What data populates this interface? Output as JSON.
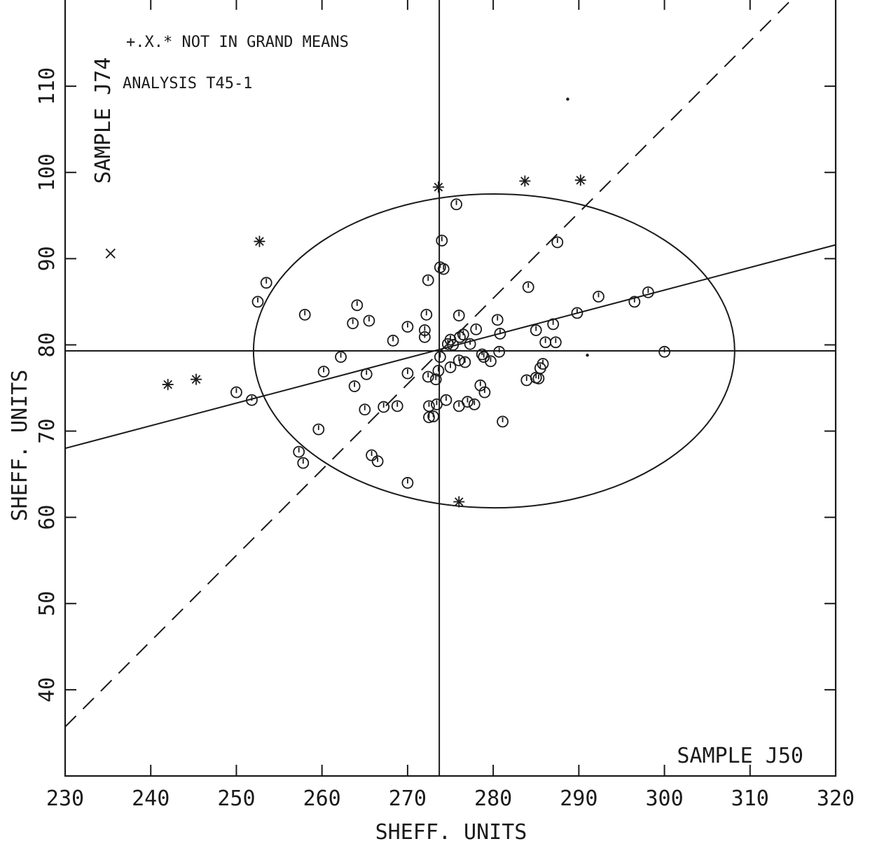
{
  "chart_data": {
    "type": "scatter",
    "xlabel": "SHEFF. UNITS",
    "ylabel": "SHEFF. UNITS",
    "xlim": [
      230,
      320
    ],
    "ylim": [
      30,
      120
    ],
    "x_ticks": [
      230,
      240,
      250,
      260,
      270,
      280,
      290,
      300,
      310,
      320
    ],
    "y_ticks": [
      40,
      50,
      60,
      70,
      80,
      90,
      100,
      110
    ],
    "grid": false,
    "annotations": {
      "legend_note": "+.X.* NOT IN GRAND MEANS",
      "analysis": "ANALYSIS  T45-1",
      "y_sample": "SAMPLE J74",
      "x_sample": "SAMPLE J50"
    },
    "reference_lines": {
      "mean_x": 273.7,
      "mean_y": 79.3
    },
    "regression_line": {
      "points": [
        [
          230,
          68.0
        ],
        [
          320,
          91.6
        ]
      ]
    },
    "diagonal_dashed": {
      "points": [
        [
          230,
          35.7
        ],
        [
          314.8,
          120
        ]
      ]
    },
    "confidence_ellipse": {
      "center": [
        280.1,
        79.3
      ],
      "semi_x": 28.1,
      "semi_y": 18.2,
      "rotation_deg": 0
    },
    "series": [
      {
        "name": "circle",
        "values": [
          [
            250.0,
            74.5
          ],
          [
            251.8,
            73.6
          ],
          [
            252.5,
            85.0
          ],
          [
            253.5,
            87.2
          ],
          [
            258.0,
            83.5
          ],
          [
            257.3,
            67.6
          ],
          [
            257.8,
            66.3
          ],
          [
            259.6,
            70.2
          ],
          [
            260.2,
            76.9
          ],
          [
            262.2,
            78.6
          ],
          [
            263.6,
            82.5
          ],
          [
            264.1,
            84.6
          ],
          [
            263.8,
            75.2
          ],
          [
            265.0,
            72.5
          ],
          [
            265.2,
            76.6
          ],
          [
            265.5,
            82.8
          ],
          [
            265.8,
            67.2
          ],
          [
            266.5,
            66.5
          ],
          [
            267.2,
            72.8
          ],
          [
            268.3,
            80.5
          ],
          [
            268.8,
            72.9
          ],
          [
            270.0,
            64.0
          ],
          [
            270.0,
            82.1
          ],
          [
            270.0,
            76.7
          ],
          [
            272.0,
            81.7
          ],
          [
            272.0,
            80.9
          ],
          [
            272.2,
            83.5
          ],
          [
            272.4,
            87.5
          ],
          [
            272.4,
            76.3
          ],
          [
            272.5,
            72.9
          ],
          [
            272.5,
            71.6
          ],
          [
            273.0,
            71.7
          ],
          [
            273.3,
            76.0
          ],
          [
            273.6,
            77.0
          ],
          [
            273.8,
            78.6
          ],
          [
            273.8,
            89.0
          ],
          [
            274.0,
            92.1
          ],
          [
            274.2,
            88.8
          ],
          [
            274.5,
            73.6
          ],
          [
            274.7,
            80.1
          ],
          [
            275.0,
            80.6
          ],
          [
            275.0,
            77.4
          ],
          [
            275.3,
            80.0
          ],
          [
            275.7,
            96.3
          ],
          [
            276.0,
            83.4
          ],
          [
            276.1,
            80.9
          ],
          [
            276.0,
            78.2
          ],
          [
            276.5,
            81.2
          ],
          [
            276.7,
            78.0
          ],
          [
            277.0,
            73.4
          ],
          [
            277.3,
            80.1
          ],
          [
            277.8,
            73.1
          ],
          [
            278.0,
            81.8
          ],
          [
            278.5,
            75.3
          ],
          [
            278.7,
            78.9
          ],
          [
            278.9,
            78.6
          ],
          [
            279.0,
            74.5
          ],
          [
            279.7,
            78.1
          ],
          [
            280.5,
            82.9
          ],
          [
            280.7,
            79.2
          ],
          [
            280.8,
            81.3
          ],
          [
            281.1,
            71.1
          ],
          [
            283.9,
            75.9
          ],
          [
            284.1,
            86.7
          ],
          [
            285.0,
            81.7
          ],
          [
            285.0,
            76.2
          ],
          [
            285.3,
            76.1
          ],
          [
            285.5,
            77.3
          ],
          [
            285.8,
            77.8
          ],
          [
            286.1,
            80.3
          ],
          [
            287.0,
            82.4
          ],
          [
            287.3,
            80.3
          ],
          [
            287.5,
            91.9
          ],
          [
            289.8,
            83.7
          ],
          [
            292.3,
            85.6
          ],
          [
            296.5,
            85.0
          ],
          [
            298.1,
            86.1
          ],
          [
            300.0,
            79.2
          ],
          [
            276.0,
            72.9
          ],
          [
            273.4,
            73.1
          ]
        ]
      },
      {
        "name": "asterisk",
        "values": [
          [
            242.0,
            75.4
          ],
          [
            245.3,
            76.0
          ],
          [
            252.7,
            92.0
          ],
          [
            273.6,
            98.3
          ],
          [
            283.7,
            99.0
          ],
          [
            290.2,
            99.1
          ],
          [
            276.0,
            61.8
          ]
        ]
      },
      {
        "name": "x",
        "values": [
          [
            235.3,
            90.6
          ]
        ]
      },
      {
        "name": "dot",
        "values": [
          [
            288.7,
            108.5
          ],
          [
            291.0,
            78.8
          ]
        ]
      }
    ]
  }
}
